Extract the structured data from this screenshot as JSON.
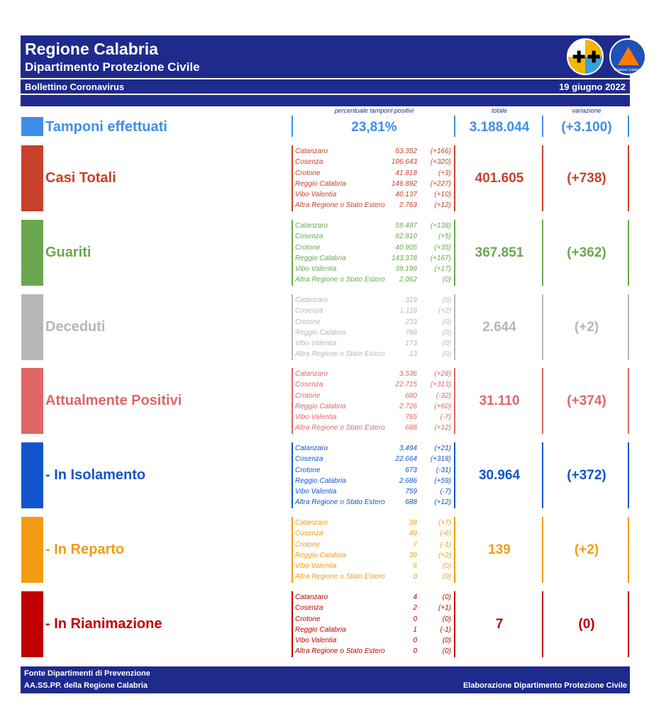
{
  "header": {
    "title": "Regione Calabria",
    "subtitle": "Dipartimento Protezione Civile",
    "bulletin": "Bollettino Coronavirus",
    "date": "19 giugno 2022",
    "logo_pc_text": "PROTEZIONE CIVILE",
    "logo_pc_sub": "Regione Calabria"
  },
  "columns": {
    "pct_label": "percentuale tamponi positivi",
    "total_label": "totale",
    "variation_label": "variazione"
  },
  "tamponi": {
    "label": "Tamponi effettuati",
    "pct": "23,81%",
    "total": "3.188.044",
    "variation": "(+3.100)",
    "color": "#3e8ee8"
  },
  "provinces": [
    "Catanzaro",
    "Cosenza",
    "Crotone",
    "Reggio Calabria",
    "Vibo Valentia",
    "Altra Regione o Stato Estero"
  ],
  "sections": [
    {
      "label": "Casi Totali",
      "color": "#c8412a",
      "total": "401.605",
      "variation": "(+738)",
      "values": [
        "63.352",
        "106.643",
        "41.818",
        "146.892",
        "40.137",
        "2.763"
      ],
      "deltas": [
        "(+166)",
        "(+320)",
        "(+3)",
        "(+227)",
        "(+10)",
        "(+12)"
      ]
    },
    {
      "label": "Guariti",
      "color": "#6aa84f",
      "total": "367.851",
      "variation": "(+362)",
      "values": [
        "59.497",
        "82.810",
        "40.905",
        "143.378",
        "39.199",
        "2.062"
      ],
      "deltas": [
        "(+138)",
        "(+5)",
        "(+35)",
        "(+167)",
        "(+17)",
        "(0)"
      ]
    },
    {
      "label": "Deceduti",
      "color": "#b7b7b7",
      "total": "2.644",
      "variation": "(+2)",
      "values": [
        "319",
        "1.118",
        "233",
        "788",
        "173",
        "13"
      ],
      "deltas": [
        "(0)",
        "(+2)",
        "(0)",
        "(0)",
        "(0)",
        "(0)"
      ]
    },
    {
      "label": "Attualmente Positivi",
      "color": "#e06666",
      "total": "31.110",
      "variation": "(+374)",
      "values": [
        "3.536",
        "22.715",
        "680",
        "2.726",
        "765",
        "688"
      ],
      "deltas": [
        "(+28)",
        "(+313)",
        "(-32)",
        "(+60)",
        "(-7)",
        "(+12)"
      ]
    },
    {
      "label": "- In Isolamento",
      "color": "#1155cc",
      "total": "30.964",
      "variation": "(+372)",
      "values": [
        "3.494",
        "22.664",
        "673",
        "2.686",
        "759",
        "688"
      ],
      "deltas": [
        "(+21)",
        "(+318)",
        "(-31)",
        "(+59)",
        "(-7)",
        "(+12)"
      ]
    },
    {
      "label": "- In Reparto",
      "color": "#f39c12",
      "total": "139",
      "variation": "(+2)",
      "values": [
        "38",
        "49",
        "7",
        "39",
        "6",
        "0"
      ],
      "deltas": [
        "(+7)",
        "(-6)",
        "(-1)",
        "(+2)",
        "(0)",
        "(0)"
      ]
    },
    {
      "label": "- In Rianimazione",
      "color": "#c00000",
      "total": "7",
      "variation": "(0)",
      "values": [
        "4",
        "2",
        "0",
        "1",
        "0",
        "0"
      ],
      "deltas": [
        "(0)",
        "(+1)",
        "(0)",
        "(-1)",
        "(0)",
        "(0)"
      ]
    }
  ],
  "footer": {
    "line1": "Fonte Dipartimenti di Prevenzione",
    "line2": "AA.SS.PP.  della Regione Calabria",
    "right": "Elaborazione Dipartimento Protezione Civile"
  }
}
